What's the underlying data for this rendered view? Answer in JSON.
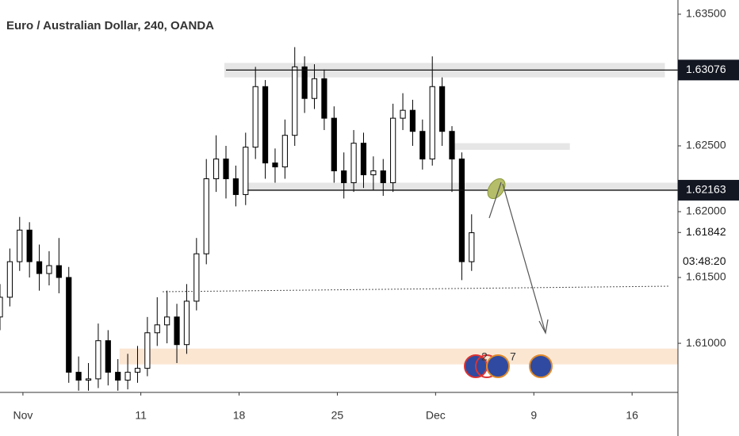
{
  "chart_data": {
    "type": "candlestick",
    "title": "Euro / Australian Dollar, 240, OANDA",
    "x": [
      0,
      3,
      6,
      9,
      12,
      15,
      18,
      21,
      24,
      27,
      30,
      33,
      36,
      39,
      42,
      45,
      48,
      51,
      54,
      57,
      60,
      63,
      66,
      69,
      72,
      75,
      78,
      81,
      84,
      87,
      90,
      93,
      96,
      99,
      102,
      105,
      108,
      111,
      114,
      117,
      120,
      123,
      126,
      129,
      132,
      135,
      138,
      141,
      144
    ],
    "open": [
      1.612,
      1.6135,
      1.6162,
      1.6186,
      1.6162,
      1.6153,
      1.6159,
      1.615,
      1.6078,
      1.6072,
      1.6073,
      1.6102,
      1.6078,
      1.6072,
      1.6078,
      1.6081,
      1.6108,
      1.6114,
      1.612,
      1.6099,
      1.6132,
      1.6168,
      1.6225,
      1.624,
      1.6225,
      1.6213,
      1.6249,
      1.6295,
      1.6237,
      1.6234,
      1.6258,
      1.631,
      1.6286,
      1.6301,
      1.6271,
      1.6231,
      1.6222,
      1.6252,
      1.6228,
      1.6231,
      1.6222,
      1.6271,
      1.6277,
      1.6261,
      1.624,
      1.6295,
      1.6261,
      1.624,
      1.6162
    ],
    "high": [
      1.6145,
      1.6172,
      1.6196,
      1.6192,
      1.6175,
      1.617,
      1.618,
      1.6158,
      1.609,
      1.6085,
      1.6115,
      1.611,
      1.6088,
      1.6092,
      1.6098,
      1.612,
      1.6135,
      1.614,
      1.613,
      1.6145,
      1.618,
      1.624,
      1.6258,
      1.625,
      1.6235,
      1.626,
      1.631,
      1.63,
      1.6248,
      1.627,
      1.6325,
      1.6318,
      1.6312,
      1.6308,
      1.628,
      1.6245,
      1.6262,
      1.626,
      1.6242,
      1.624,
      1.6282,
      1.629,
      1.6285,
      1.627,
      1.6318,
      1.6302,
      1.6265,
      1.6245,
      1.6198
    ],
    "low": [
      1.611,
      1.6128,
      1.6155,
      1.615,
      1.614,
      1.6144,
      1.6138,
      1.607,
      1.6064,
      1.6064,
      1.6066,
      1.6068,
      1.6064,
      1.6065,
      1.607,
      1.6075,
      1.6098,
      1.61,
      1.6085,
      1.6092,
      1.6125,
      1.616,
      1.6215,
      1.621,
      1.6204,
      1.6205,
      1.624,
      1.6225,
      1.6222,
      1.6225,
      1.625,
      1.6275,
      1.6278,
      1.6262,
      1.6222,
      1.621,
      1.6215,
      1.6218,
      1.6216,
      1.6212,
      1.6215,
      1.6262,
      1.625,
      1.6232,
      1.6235,
      1.625,
      1.6215,
      1.6148,
      1.6155
    ],
    "close": [
      1.6135,
      1.6162,
      1.6186,
      1.6162,
      1.6153,
      1.6159,
      1.615,
      1.6078,
      1.6072,
      1.6073,
      1.6102,
      1.6078,
      1.6072,
      1.6078,
      1.6081,
      1.6108,
      1.6114,
      1.612,
      1.6099,
      1.6132,
      1.6168,
      1.6225,
      1.624,
      1.6225,
      1.6213,
      1.6249,
      1.6295,
      1.6237,
      1.6234,
      1.6258,
      1.631,
      1.6286,
      1.6301,
      1.6271,
      1.6231,
      1.6222,
      1.6252,
      1.6228,
      1.6231,
      1.6222,
      1.6271,
      1.6277,
      1.6261,
      1.624,
      1.6295,
      1.6261,
      1.624,
      1.6162,
      1.6184
    ],
    "up_color": "#ffffff",
    "down_color": "#000000",
    "xlim": [
      0,
      207
    ],
    "xticks": [
      {
        "value": 7,
        "label": "Nov"
      },
      {
        "value": 43,
        "label": "11"
      },
      {
        "value": 73,
        "label": "18"
      },
      {
        "value": 103,
        "label": "25"
      },
      {
        "value": 133,
        "label": "Dec"
      },
      {
        "value": 163,
        "label": "9"
      },
      {
        "value": 193,
        "label": "16"
      }
    ],
    "ylim": [
      1.60627,
      1.63608
    ],
    "yticks": [
      {
        "value": 1.635,
        "label": "1.63500"
      },
      {
        "value": 1.625,
        "label": "1.62500"
      },
      {
        "value": 1.62,
        "label": "1.62000"
      },
      {
        "value": 1.615,
        "label": "1.61500"
      },
      {
        "value": 1.61,
        "label": "1.61000"
      }
    ],
    "levels": [
      {
        "value": 1.63076,
        "from": 69
      },
      {
        "value": 1.62163,
        "from": 75.5
      }
    ],
    "last_price": 1.61842,
    "countdown": "03:48:20",
    "zones": [
      {
        "ylim": [
          1.6302,
          1.6313
        ],
        "xlim": [
          68.5,
          203
        ],
        "color": "#e6e6e6"
      },
      {
        "ylim": [
          1.6247,
          1.6252
        ],
        "xlim": [
          138,
          174
        ],
        "color": "#e6e6e6"
      },
      {
        "ylim": [
          1.6216,
          1.6222
        ],
        "xlim": [
          75.5,
          207
        ],
        "color": "#e6e6e6"
      },
      {
        "ylim": [
          1.6084,
          1.6096
        ],
        "xlim": [
          36.5,
          207
        ],
        "color": "#fbe6d2"
      }
    ],
    "event_labels": [
      "2",
      "7"
    ]
  }
}
